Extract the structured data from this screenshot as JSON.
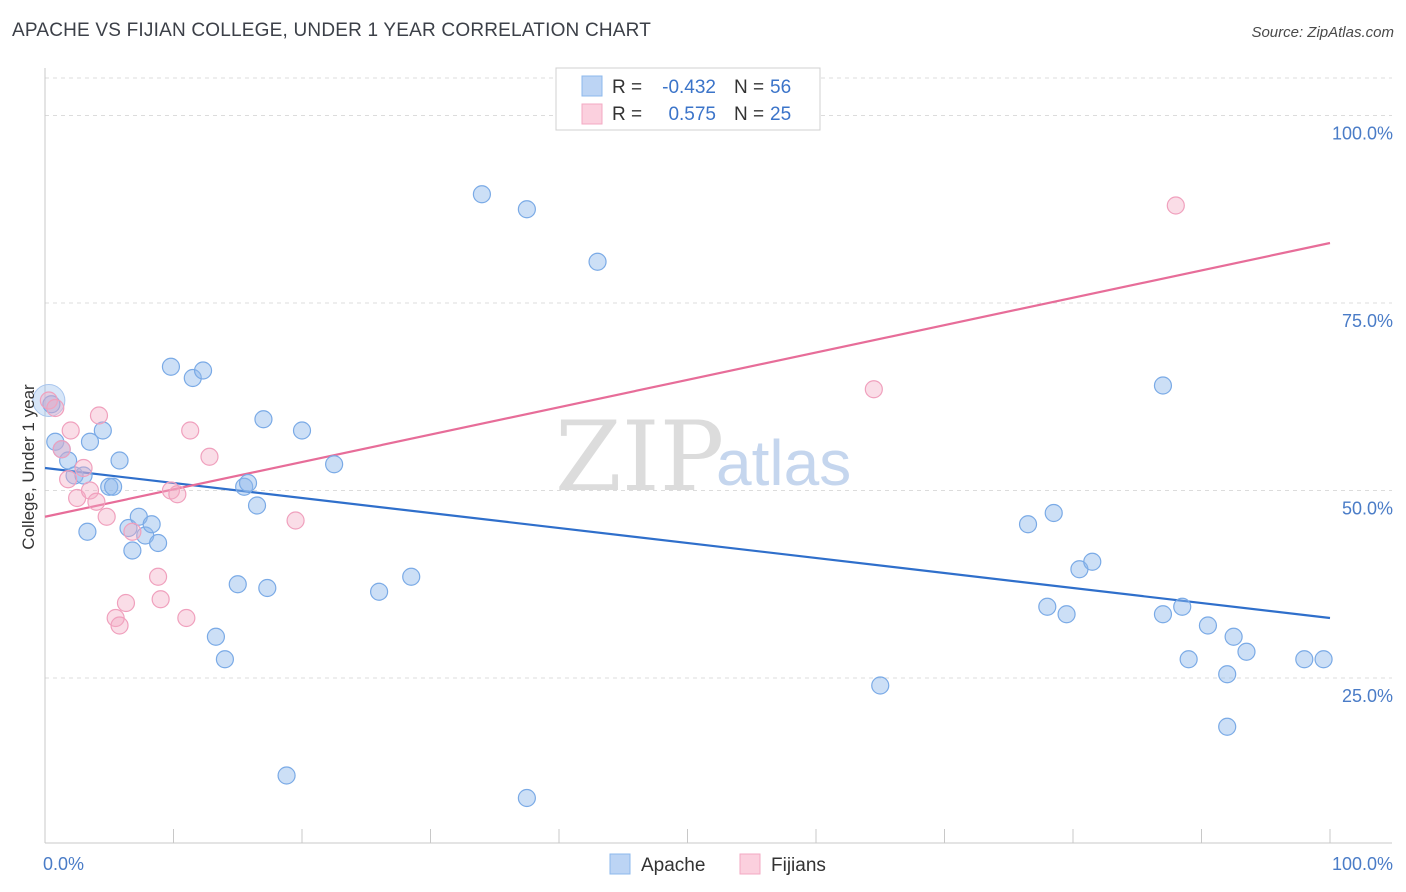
{
  "title": "APACHE VS FIJIAN COLLEGE, UNDER 1 YEAR CORRELATION CHART",
  "source": "Source: ZipAtlas.com",
  "watermark": {
    "zip": "ZIP",
    "atlas": "atlas"
  },
  "legend": {
    "r_label": "R =",
    "n_label": "N =",
    "series": [
      {
        "name": "Apache",
        "r": "-0.432",
        "n": "56"
      },
      {
        "name": "Fijians",
        "r": "0.575",
        "n": "25"
      }
    ]
  },
  "chart_data": {
    "type": "scatter",
    "title": "APACHE VS FIJIAN COLLEGE, UNDER 1 YEAR CORRELATION CHART",
    "xlabel": "",
    "ylabel": "College, Under 1 year",
    "xlim": [
      0,
      100
    ],
    "ylim": [
      3,
      105
    ],
    "x_tick_labels": [
      "0.0%",
      "100.0%"
    ],
    "y_ticks": [
      25,
      50,
      75,
      100
    ],
    "y_tick_labels": [
      "25.0%",
      "50.0%",
      "75.0%",
      "100.0%"
    ],
    "colors": {
      "Apache": "#8db8ec",
      "Fijians": "#f3a9c3",
      "Apache_line": "#2f6fcb",
      "Fijians_line": "#e76d99"
    },
    "series": [
      {
        "name": "Apache",
        "points": [
          [
            0.5,
            61.5
          ],
          [
            0.8,
            56.5
          ],
          [
            1.3,
            55.5
          ],
          [
            1.8,
            54.0
          ],
          [
            2.3,
            52.0
          ],
          [
            3.0,
            52.0
          ],
          [
            3.3,
            44.5
          ],
          [
            3.5,
            56.5
          ],
          [
            4.5,
            58.0
          ],
          [
            5.0,
            50.5
          ],
          [
            5.3,
            50.5
          ],
          [
            5.8,
            54.0
          ],
          [
            6.5,
            45.0
          ],
          [
            6.8,
            42.0
          ],
          [
            7.3,
            46.5
          ],
          [
            7.8,
            44.0
          ],
          [
            8.3,
            45.5
          ],
          [
            8.8,
            43.0
          ],
          [
            9.8,
            66.5
          ],
          [
            11.5,
            65.0
          ],
          [
            12.3,
            66.0
          ],
          [
            13.3,
            30.5
          ],
          [
            14.0,
            27.5
          ],
          [
            15.0,
            37.5
          ],
          [
            15.5,
            50.5
          ],
          [
            15.8,
            51.0
          ],
          [
            16.5,
            48.0
          ],
          [
            17.0,
            59.5
          ],
          [
            17.3,
            37.0
          ],
          [
            18.8,
            12.0
          ],
          [
            20.0,
            58.0
          ],
          [
            22.5,
            53.5
          ],
          [
            26.0,
            36.5
          ],
          [
            28.5,
            38.5
          ],
          [
            34.0,
            89.5
          ],
          [
            37.5,
            87.5
          ],
          [
            37.5,
            9.0
          ],
          [
            43.0,
            80.5
          ],
          [
            65.0,
            24.0
          ],
          [
            76.5,
            45.5
          ],
          [
            78.0,
            34.5
          ],
          [
            78.5,
            47.0
          ],
          [
            79.5,
            33.5
          ],
          [
            80.5,
            39.5
          ],
          [
            81.5,
            40.5
          ],
          [
            87.0,
            64.0
          ],
          [
            87.0,
            33.5
          ],
          [
            88.5,
            34.5
          ],
          [
            89.0,
            27.5
          ],
          [
            90.5,
            32.0
          ],
          [
            92.0,
            25.5
          ],
          [
            92.5,
            30.5
          ],
          [
            93.5,
            28.5
          ],
          [
            92.0,
            18.5
          ],
          [
            98.0,
            27.5
          ],
          [
            99.5,
            27.5
          ]
        ]
      },
      {
        "name": "Fijians",
        "points": [
          [
            0.3,
            62.0
          ],
          [
            0.8,
            61.0
          ],
          [
            1.3,
            55.5
          ],
          [
            1.8,
            51.5
          ],
          [
            2.0,
            58.0
          ],
          [
            2.5,
            49.0
          ],
          [
            3.0,
            53.0
          ],
          [
            3.5,
            50.0
          ],
          [
            4.0,
            48.5
          ],
          [
            4.2,
            60.0
          ],
          [
            4.8,
            46.5
          ],
          [
            5.5,
            33.0
          ],
          [
            5.8,
            32.0
          ],
          [
            6.3,
            35.0
          ],
          [
            6.8,
            44.5
          ],
          [
            8.8,
            38.5
          ],
          [
            9.0,
            35.5
          ],
          [
            9.8,
            50.0
          ],
          [
            10.3,
            49.5
          ],
          [
            11.0,
            33.0
          ],
          [
            11.3,
            58.0
          ],
          [
            12.8,
            54.5
          ],
          [
            19.5,
            46.0
          ],
          [
            64.5,
            63.5
          ],
          [
            88.0,
            88.0
          ]
        ]
      }
    ],
    "trend_lines": [
      {
        "name": "Apache",
        "x": [
          0,
          100
        ],
        "y": [
          53.0,
          33.0
        ]
      },
      {
        "name": "Fijians",
        "x": [
          0,
          100
        ],
        "y": [
          46.5,
          83.0
        ]
      }
    ]
  }
}
